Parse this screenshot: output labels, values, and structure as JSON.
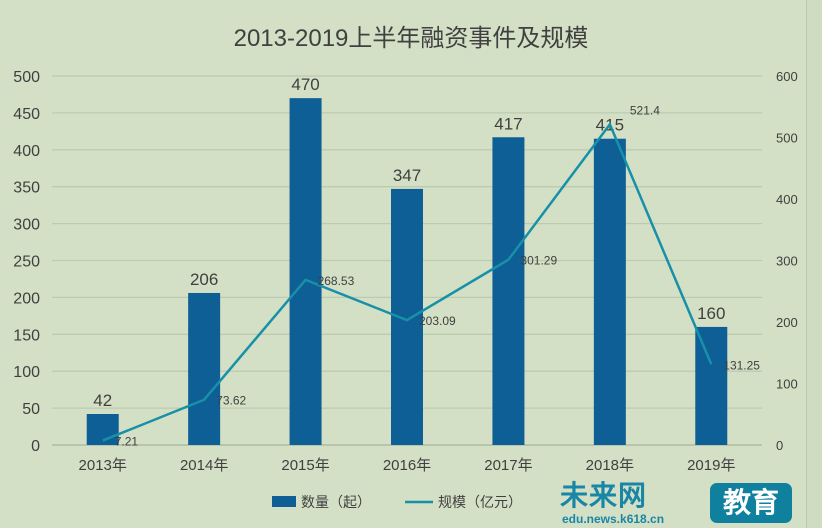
{
  "chart_data": {
    "type": "bar+line",
    "title": "2013-2019上半年融资事件及规模",
    "categories": [
      "2013年",
      "2014年",
      "2015年",
      "2016年",
      "2017年",
      "2018年",
      "2019年"
    ],
    "series": [
      {
        "name": "数量（起）",
        "type": "bar",
        "axis": "left",
        "color": "#0e5f96",
        "values": [
          42,
          206,
          470,
          347,
          417,
          415,
          160
        ]
      },
      {
        "name": "规模（亿元）",
        "type": "line",
        "axis": "right",
        "color": "#1790a8",
        "values": [
          7.21,
          73.62,
          268.53,
          203.09,
          301.29,
          521.4,
          131.25
        ]
      }
    ],
    "left_ticks": [
      0,
      50,
      100,
      150,
      200,
      250,
      300,
      350,
      400,
      450,
      500
    ],
    "right_ticks": [
      0,
      100,
      200,
      300,
      400,
      500,
      600
    ],
    "ylim_left": [
      0,
      500
    ],
    "ylim_right": [
      0,
      600
    ],
    "grid": true,
    "legend_position": "bottom"
  },
  "watermark": {
    "text": "未来网",
    "badge": "教育",
    "url": "edu.news.k618.cn"
  }
}
